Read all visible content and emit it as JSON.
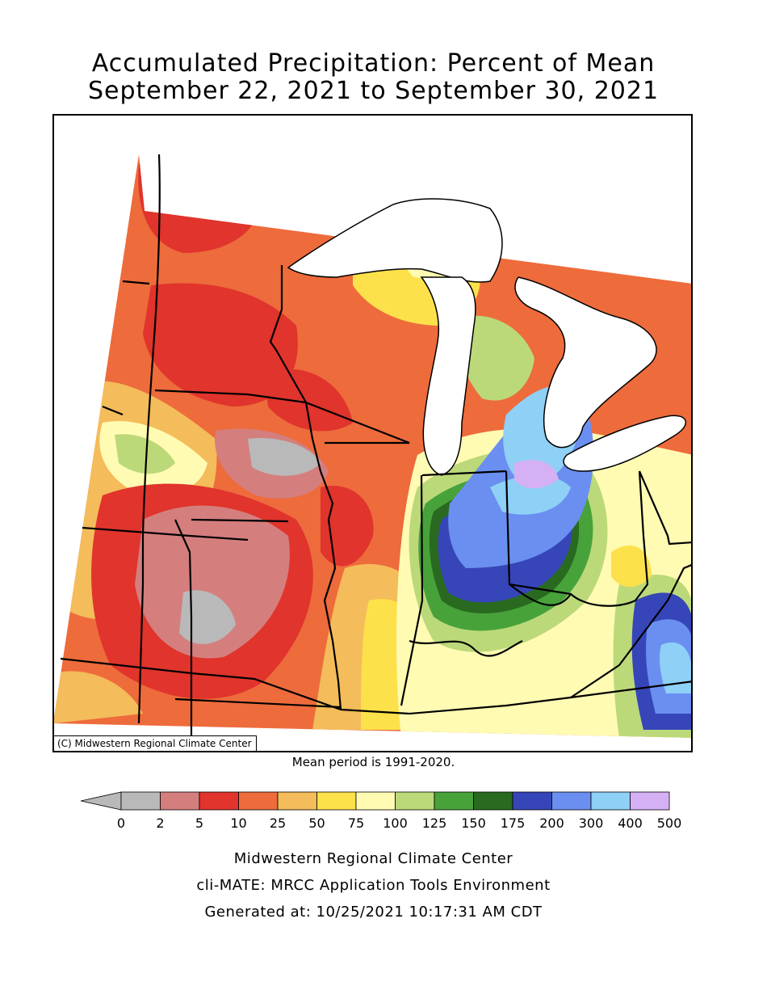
{
  "title_line1": "Accumulated Precipitation: Percent of Mean",
  "title_line2": "September 22, 2021 to September 30, 2021",
  "copyright": "(C) Midwestern Regional Climate Center",
  "mean_period": "Mean period is 1991-2020.",
  "legend": {
    "colors": [
      "#b9b9b9",
      "#d57e7e",
      "#e0342c",
      "#ee6b3c",
      "#f4bc5a",
      "#fde14a",
      "#fffbb3",
      "#bcd979",
      "#47a23a",
      "#2a6a20",
      "#3646b8",
      "#6a8ff0",
      "#8ed0f6",
      "#d6b0f4"
    ],
    "labels": [
      "0",
      "2",
      "5",
      "10",
      "25",
      "50",
      "75",
      "100",
      "125",
      "150",
      "175",
      "200",
      "300",
      "400",
      "500"
    ]
  },
  "credits": {
    "line1": "Midwestern Regional Climate Center",
    "line2": "cli-MATE: MRCC Application Tools Environment",
    "line3": "Generated at: 10/25/2021 10:17:31 AM CDT"
  }
}
